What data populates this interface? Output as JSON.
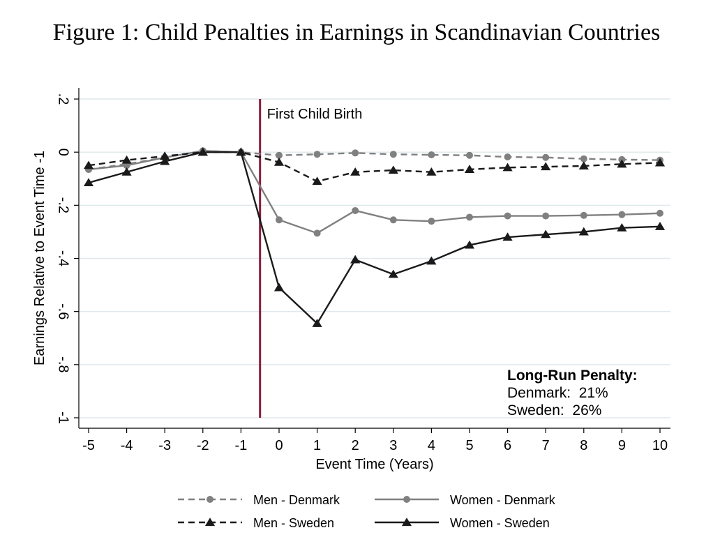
{
  "figure_title": "Figure 1: Child Penalties in Earnings in Scandinavian Countries",
  "chart_data": {
    "type": "line",
    "xlabel": "Event Time (Years)",
    "ylabel": "Earnings Relative to Event Time -1",
    "x": [
      -5,
      -4,
      -3,
      -2,
      -1,
      0,
      1,
      2,
      3,
      4,
      5,
      6,
      7,
      8,
      9,
      10
    ],
    "xticks": [
      "-5",
      "-4",
      "-3",
      "-2",
      "-1",
      "0",
      "1",
      "2",
      "3",
      "4",
      "5",
      "6",
      "7",
      "8",
      "9",
      "10"
    ],
    "xlim": [
      -5,
      10
    ],
    "ylim": [
      -1,
      0.2
    ],
    "yticks": [
      0.2,
      0,
      -0.2,
      -0.4,
      -0.6,
      -0.8,
      -1
    ],
    "ytick_labels": [
      ".2",
      "0",
      "-.2",
      "-.4",
      "-.6",
      "-.8",
      "-1"
    ],
    "grid": true,
    "event_line": {
      "x": -0.5,
      "label": "First Child Birth",
      "color": "#8b1a3a"
    },
    "annotation": {
      "title": "Long-Run Penalty:",
      "lines": [
        "Denmark:  21%",
        "Sweden:  26%"
      ]
    },
    "legend_position": "bottom",
    "series": [
      {
        "name": "Men - Denmark",
        "marker": "circle",
        "dash": "dashed",
        "color": "#808080",
        "values": [
          -0.065,
          -0.045,
          -0.02,
          0.005,
          0.0,
          -0.012,
          -0.008,
          -0.003,
          -0.008,
          -0.01,
          -0.012,
          -0.018,
          -0.02,
          -0.025,
          -0.028,
          -0.03
        ]
      },
      {
        "name": "Women - Denmark",
        "marker": "circle",
        "dash": "solid",
        "color": "#808080",
        "values": [
          -0.065,
          -0.05,
          -0.02,
          0.005,
          0.0,
          -0.255,
          -0.305,
          -0.22,
          -0.255,
          -0.26,
          -0.245,
          -0.24,
          -0.24,
          -0.238,
          -0.235,
          -0.23
        ]
      },
      {
        "name": "Men - Sweden",
        "marker": "triangle",
        "dash": "dashed",
        "color": "#1a1a1a",
        "values": [
          -0.05,
          -0.03,
          -0.015,
          0.0,
          0.0,
          -0.038,
          -0.11,
          -0.075,
          -0.068,
          -0.075,
          -0.065,
          -0.058,
          -0.055,
          -0.052,
          -0.045,
          -0.04
        ]
      },
      {
        "name": "Women - Sweden",
        "marker": "triangle",
        "dash": "solid",
        "color": "#1a1a1a",
        "values": [
          -0.115,
          -0.075,
          -0.035,
          0.0,
          0.0,
          -0.51,
          -0.645,
          -0.405,
          -0.46,
          -0.41,
          -0.35,
          -0.32,
          -0.31,
          -0.3,
          -0.285,
          -0.28
        ]
      }
    ]
  }
}
